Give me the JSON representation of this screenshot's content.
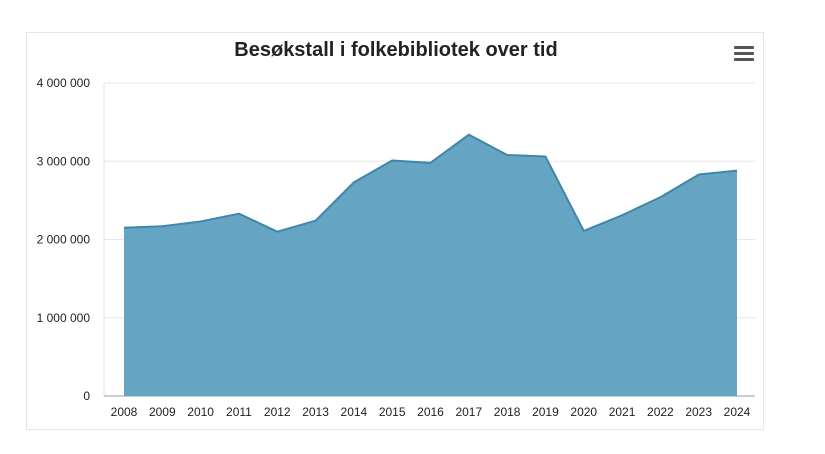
{
  "chart_data": {
    "type": "area",
    "title": "Besøkstall i folkebibliotek over tid",
    "x": [
      "2008",
      "2009",
      "2010",
      "2011",
      "2012",
      "2013",
      "2014",
      "2015",
      "2016",
      "2017",
      "2018",
      "2019",
      "2020",
      "2021",
      "2022",
      "2023",
      "2024"
    ],
    "series": [
      {
        "values": [
          2150000,
          2170000,
          2230000,
          2330000,
          2100000,
          2240000,
          2730000,
          3010000,
          2980000,
          3340000,
          3080000,
          3060000,
          2110000,
          2310000,
          2540000,
          2830000,
          2880000
        ],
        "color": "#5e9fc1"
      }
    ],
    "yticks": [
      "0",
      "1 000 000",
      "2 000 000",
      "3 000 000",
      "4 000 000"
    ],
    "ylim": [
      0,
      4000000
    ],
    "grid": true,
    "colors": {
      "fill": "#5e9fc1",
      "line": "#3f86a9",
      "grid": "#e6e6e6",
      "axis": "#999999"
    }
  },
  "menu": {
    "icon": "hamburger-menu-icon"
  }
}
